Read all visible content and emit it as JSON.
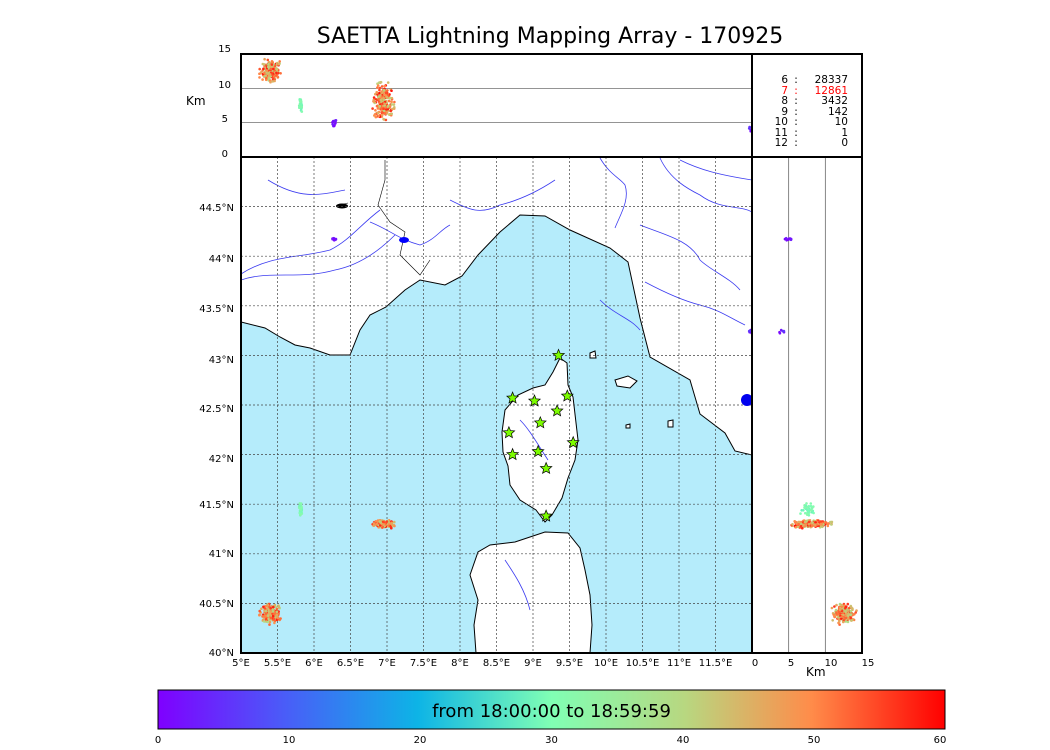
{
  "title": "SAETTA Lightning Mapping Array - 170925",
  "colorbar": {
    "label": "from 18:00:00 to 18:59:59",
    "ticks": [
      "0",
      "10",
      "20",
      "30",
      "40",
      "50",
      "60"
    ],
    "range": [
      0,
      60
    ]
  },
  "counts": [
    {
      "level": "6",
      "value": "28337",
      "color": "#000000"
    },
    {
      "level": "7",
      "value": "12861",
      "color": "#ff0000"
    },
    {
      "level": "8",
      "value": "3432",
      "color": "#000000"
    },
    {
      "level": "9",
      "value": "142",
      "color": "#000000"
    },
    {
      "level": "10",
      "value": "10",
      "color": "#000000"
    },
    {
      "level": "11",
      "value": "1",
      "color": "#000000"
    },
    {
      "level": "12",
      "value": "0",
      "color": "#000000"
    }
  ],
  "count_separator": ":",
  "colors": {
    "sea": "#b5ecfb",
    "land": "#ffffff",
    "river": "#3c3cf0",
    "coast": "#000000",
    "station_fill": "#7cfc00"
  },
  "chart_data": {
    "type": "scatter",
    "title": "SAETTA Lightning Mapping Array - 170925",
    "map": {
      "lon_ticks": [
        "5°E",
        "5.5°E",
        "6°E",
        "6.5°E",
        "7°E",
        "7.5°E",
        "8°E",
        "8.5°E",
        "9°E",
        "9.5°E",
        "10°E",
        "10.5°E",
        "11°E",
        "11.5°E"
      ],
      "lat_ticks": [
        "40°N",
        "40.5°N",
        "41°N",
        "41.5°N",
        "42°N",
        "42.5°N",
        "43°N",
        "43.5°N",
        "44°N",
        "44.5°N"
      ],
      "xlim": [
        5,
        12
      ],
      "ylim": [
        40,
        45
      ],
      "grid": true
    },
    "altitude_panel": {
      "ylabel": "Km",
      "yticks": [
        "0",
        "5",
        "10",
        "15"
      ],
      "ylim": [
        0,
        15
      ]
    },
    "side_panel": {
      "xlabel": "Km",
      "xticks": [
        "0",
        "5",
        "10",
        "15"
      ],
      "xlim": [
        0,
        15
      ]
    },
    "stations": [
      {
        "lon": 9.35,
        "lat": 43.0
      },
      {
        "lon": 8.72,
        "lat": 42.57
      },
      {
        "lon": 9.02,
        "lat": 42.54
      },
      {
        "lon": 9.47,
        "lat": 42.59
      },
      {
        "lon": 9.33,
        "lat": 42.44
      },
      {
        "lon": 9.1,
        "lat": 42.32
      },
      {
        "lon": 8.67,
        "lat": 42.22
      },
      {
        "lon": 9.55,
        "lat": 42.12
      },
      {
        "lon": 9.07,
        "lat": 42.03
      },
      {
        "lon": 8.72,
        "lat": 42.0
      },
      {
        "lon": 9.18,
        "lat": 41.86
      },
      {
        "lon": 9.18,
        "lat": 41.38
      }
    ],
    "clusters": [
      {
        "lon": 5.4,
        "lat": 40.4,
        "dlon": 0.17,
        "dlat": 0.12,
        "alt": 12.5,
        "dalt": 2,
        "t": [
          38,
          58
        ],
        "n": 260
      },
      {
        "lon": 6.95,
        "lat": 41.3,
        "dlon": 0.18,
        "dlat": 0.05,
        "alt": 8,
        "dalt": 3.5,
        "t": [
          40,
          59
        ],
        "n": 220
      },
      {
        "lon": 5.82,
        "lat": 41.45,
        "dlon": 0.03,
        "dlat": 0.08,
        "alt": 7.5,
        "dalt": 1.5,
        "t": [
          28,
          32
        ],
        "n": 35
      },
      {
        "lon": 6.27,
        "lat": 44.17,
        "dlon": 0.04,
        "dlat": 0.015,
        "alt": 5,
        "dalt": 1,
        "t": [
          0,
          4
        ],
        "n": 14
      },
      {
        "lon": 11.98,
        "lat": 43.25,
        "dlon": 0.03,
        "dlat": 0.03,
        "alt": 4,
        "dalt": 1,
        "t": [
          0,
          6
        ],
        "n": 6
      }
    ]
  }
}
